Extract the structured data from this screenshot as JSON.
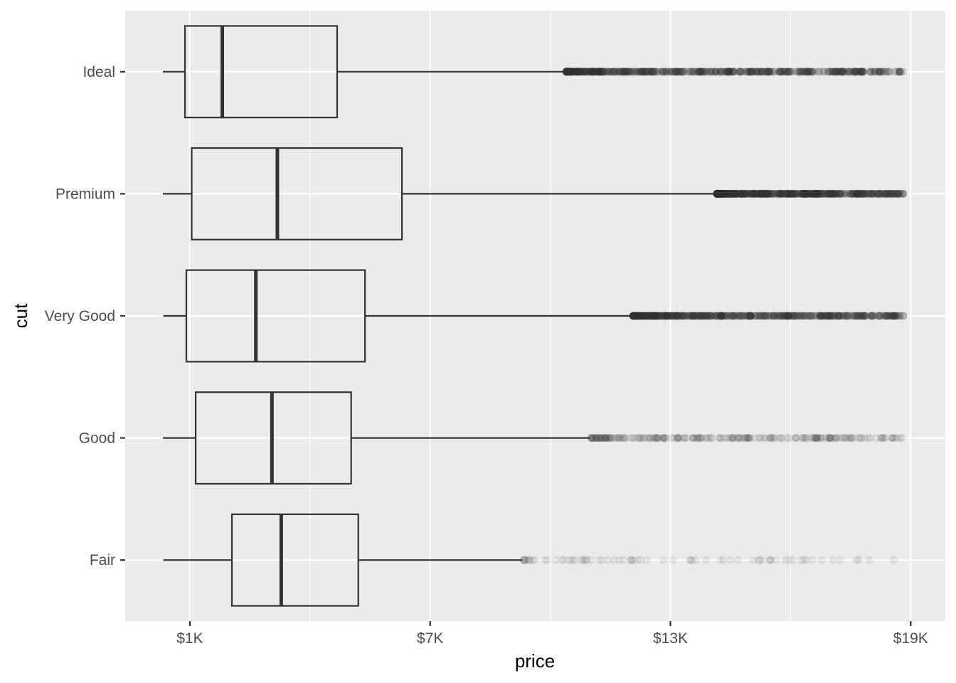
{
  "chart_data": {
    "type": "boxplot",
    "title": "",
    "xlabel": "price",
    "ylabel": "cut",
    "xlim": [
      -615,
      19865
    ],
    "x_ticks": [
      {
        "value": 1000,
        "label": "$1K"
      },
      {
        "value": 7000,
        "label": "$7K"
      },
      {
        "value": 13000,
        "label": "$13K"
      },
      {
        "value": 19000,
        "label": "$19K"
      }
    ],
    "x_minor_ticks": [
      4000,
      10000,
      16000
    ],
    "grid": true,
    "orientation": "horizontal",
    "categories": [
      "Ideal",
      "Premium",
      "Very Good",
      "Good",
      "Fair"
    ],
    "boxes": [
      {
        "category": "Ideal",
        "min": 326,
        "q1": 878,
        "median": 1810,
        "q3": 4678,
        "whisker_high": 10375,
        "outlier_min": 10400,
        "outlier_max": 18806,
        "outlier_density": "dense"
      },
      {
        "category": "Premium",
        "min": 326,
        "q1": 1046,
        "median": 3185,
        "q3": 6296,
        "whisker_high": 14140,
        "outlier_min": 14160,
        "outlier_max": 18823,
        "outlier_density": "dense"
      },
      {
        "category": "Very Good",
        "min": 336,
        "q1": 912,
        "median": 2648,
        "q3": 5373,
        "whisker_high": 12050,
        "outlier_min": 12070,
        "outlier_max": 18818,
        "outlier_density": "dense"
      },
      {
        "category": "Good",
        "min": 327,
        "q1": 1145,
        "median": 3050,
        "q3": 5028,
        "whisker_high": 11000,
        "outlier_min": 11020,
        "outlier_max": 18788,
        "outlier_density": "medium"
      },
      {
        "category": "Fair",
        "min": 337,
        "q1": 2050,
        "median": 3282,
        "q3": 5206,
        "whisker_high": 9300,
        "outlier_min": 9340,
        "outlier_max": 18574,
        "outlier_density": "sparse"
      }
    ],
    "colors": {
      "panel_background": "#ebebeb",
      "gridline": "#ffffff",
      "box_line": "#333333",
      "outlier": "#333333"
    }
  }
}
